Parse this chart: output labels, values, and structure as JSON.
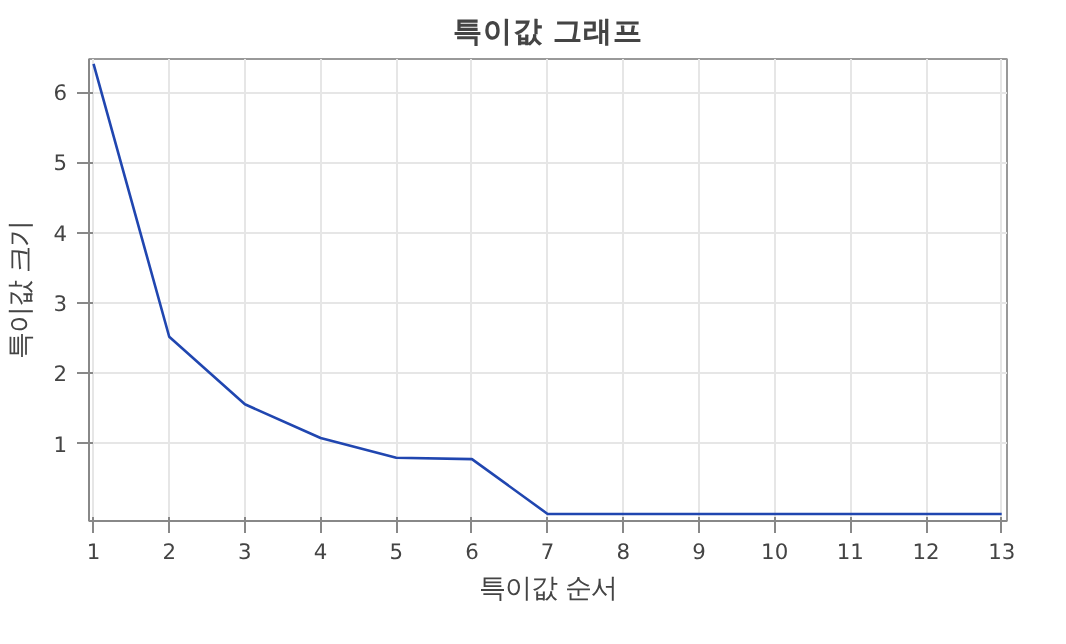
{
  "chart_data": {
    "type": "line",
    "title": "특이값 그래프",
    "xlabel": "특이값 순서",
    "ylabel": "특이값 크기",
    "x": [
      1,
      2,
      3,
      4,
      5,
      6,
      7,
      8,
      9,
      10,
      11,
      12,
      13
    ],
    "series": [
      {
        "color": "#2046b0",
        "values": [
          6.4,
          2.52,
          1.56,
          1.08,
          0.8,
          0.78,
          0.0,
          0.0,
          0.0,
          0.0,
          0.0,
          0.0,
          0.0
        ]
      }
    ],
    "xlim": [
      0.94,
      13.07
    ],
    "ylim": [
      -0.1,
      6.47
    ],
    "xticks": [
      1,
      2,
      3,
      4,
      5,
      6,
      7,
      8,
      9,
      10,
      11,
      12,
      13
    ],
    "yticks": [
      1,
      2,
      3,
      4,
      5,
      6
    ],
    "grid": true,
    "marker": "none",
    "line_style": "solid"
  }
}
